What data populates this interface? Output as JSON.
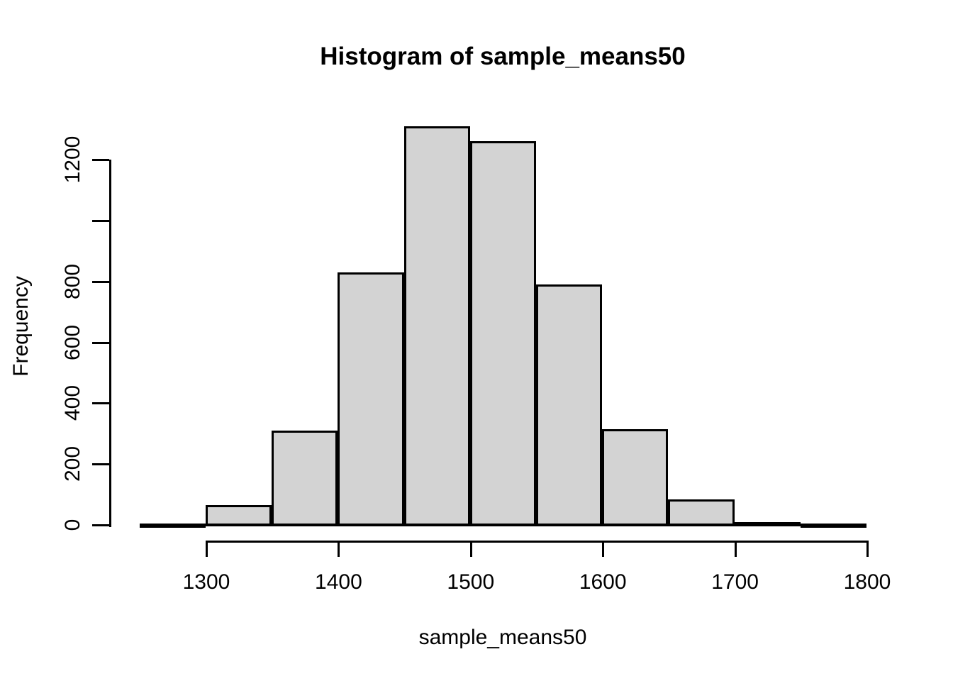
{
  "chart_data": {
    "type": "bar",
    "subtype": "histogram",
    "title": "Histogram of sample_means50",
    "xlabel": "sample_means50",
    "ylabel": "Frequency",
    "bin_width": 50,
    "bins": [
      {
        "start": 1250,
        "end": 1300,
        "count": 2
      },
      {
        "start": 1300,
        "end": 1350,
        "count": 65
      },
      {
        "start": 1350,
        "end": 1400,
        "count": 310
      },
      {
        "start": 1400,
        "end": 1450,
        "count": 830
      },
      {
        "start": 1450,
        "end": 1500,
        "count": 1310
      },
      {
        "start": 1500,
        "end": 1550,
        "count": 1260
      },
      {
        "start": 1550,
        "end": 1600,
        "count": 790
      },
      {
        "start": 1600,
        "end": 1650,
        "count": 315
      },
      {
        "start": 1650,
        "end": 1700,
        "count": 85
      },
      {
        "start": 1700,
        "end": 1750,
        "count": 10
      },
      {
        "start": 1750,
        "end": 1800,
        "count": 1
      }
    ],
    "x_ticks": [
      {
        "value": 1300,
        "label": "1300"
      },
      {
        "value": 1400,
        "label": "1400"
      },
      {
        "value": 1500,
        "label": "1500"
      },
      {
        "value": 1600,
        "label": "1600"
      },
      {
        "value": 1700,
        "label": "1700"
      },
      {
        "value": 1800,
        "label": "1800"
      }
    ],
    "y_ticks": [
      {
        "value": 0,
        "label": "0"
      },
      {
        "value": 200,
        "label": "200"
      },
      {
        "value": 400,
        "label": "400"
      },
      {
        "value": 600,
        "label": "600"
      },
      {
        "value": 800,
        "label": "800"
      },
      {
        "value": 1000,
        "label": ""
      },
      {
        "value": 1200,
        "label": "1200"
      }
    ],
    "xlim": [
      1250,
      1800
    ],
    "ylim": [
      0,
      1200
    ],
    "legend": "none",
    "grid": false,
    "colors": {
      "bar_fill": "#d3d3d3",
      "bar_border": "#000000",
      "axis": "#000000",
      "text": "#000000",
      "background": "#ffffff"
    }
  }
}
